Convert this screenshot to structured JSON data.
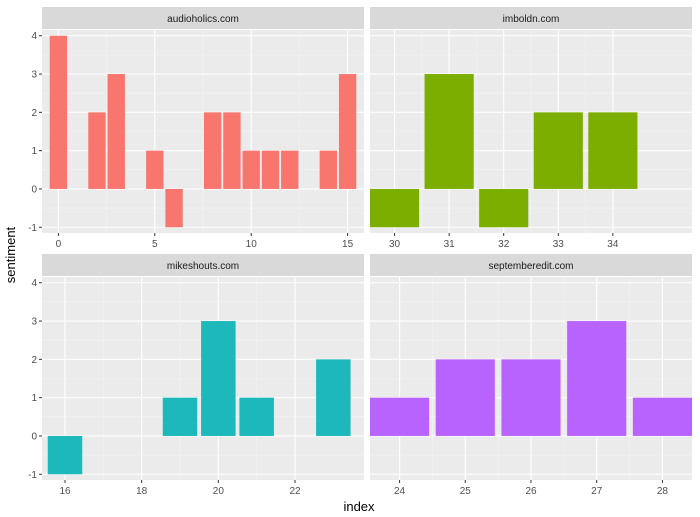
{
  "chart_data": {
    "type": "bar",
    "facet_layout": "2x2",
    "xlabel": "index",
    "ylabel": "sentiment",
    "ylim": [
      -1.15,
      4.15
    ],
    "y_ticks": [
      -1,
      0,
      1,
      2,
      3,
      4
    ],
    "grid": true,
    "legend": "none",
    "panels": [
      {
        "name": "audioholics.com",
        "color": "#F8766D",
        "xlim": [
          -0.85,
          15.85
        ],
        "x_ticks": [
          0,
          5,
          10,
          15
        ],
        "x": [
          0,
          2,
          3,
          5,
          6,
          8,
          9,
          10,
          11,
          12,
          14,
          15
        ],
        "values": [
          4,
          2,
          3,
          1,
          -1,
          2,
          2,
          1,
          1,
          1,
          1,
          3
        ]
      },
      {
        "name": "imboldn.com",
        "color": "#7CAE00",
        "xlim": [
          29.55,
          35.45
        ],
        "x_ticks": [
          30,
          31,
          32,
          33,
          34
        ],
        "x": [
          30,
          31,
          32,
          33,
          34
        ],
        "values": [
          -1,
          3,
          -1,
          2,
          2
        ]
      },
      {
        "name": "mikeshouts.com",
        "color": "#1CB8BB",
        "xlim": [
          15.4,
          23.8
        ],
        "x_ticks": [
          16,
          18,
          20,
          22
        ],
        "x": [
          16,
          19,
          20,
          21,
          23
        ],
        "values": [
          -1,
          1,
          3,
          1,
          2
        ]
      },
      {
        "name": "septemberedit.com",
        "color": "#B963FF",
        "xlim": [
          23.55,
          28.45
        ],
        "x_ticks": [
          24,
          25,
          26,
          27,
          28
        ],
        "x": [
          24,
          25,
          26,
          27,
          28
        ],
        "values": [
          1,
          2,
          2,
          3,
          1
        ]
      }
    ]
  }
}
